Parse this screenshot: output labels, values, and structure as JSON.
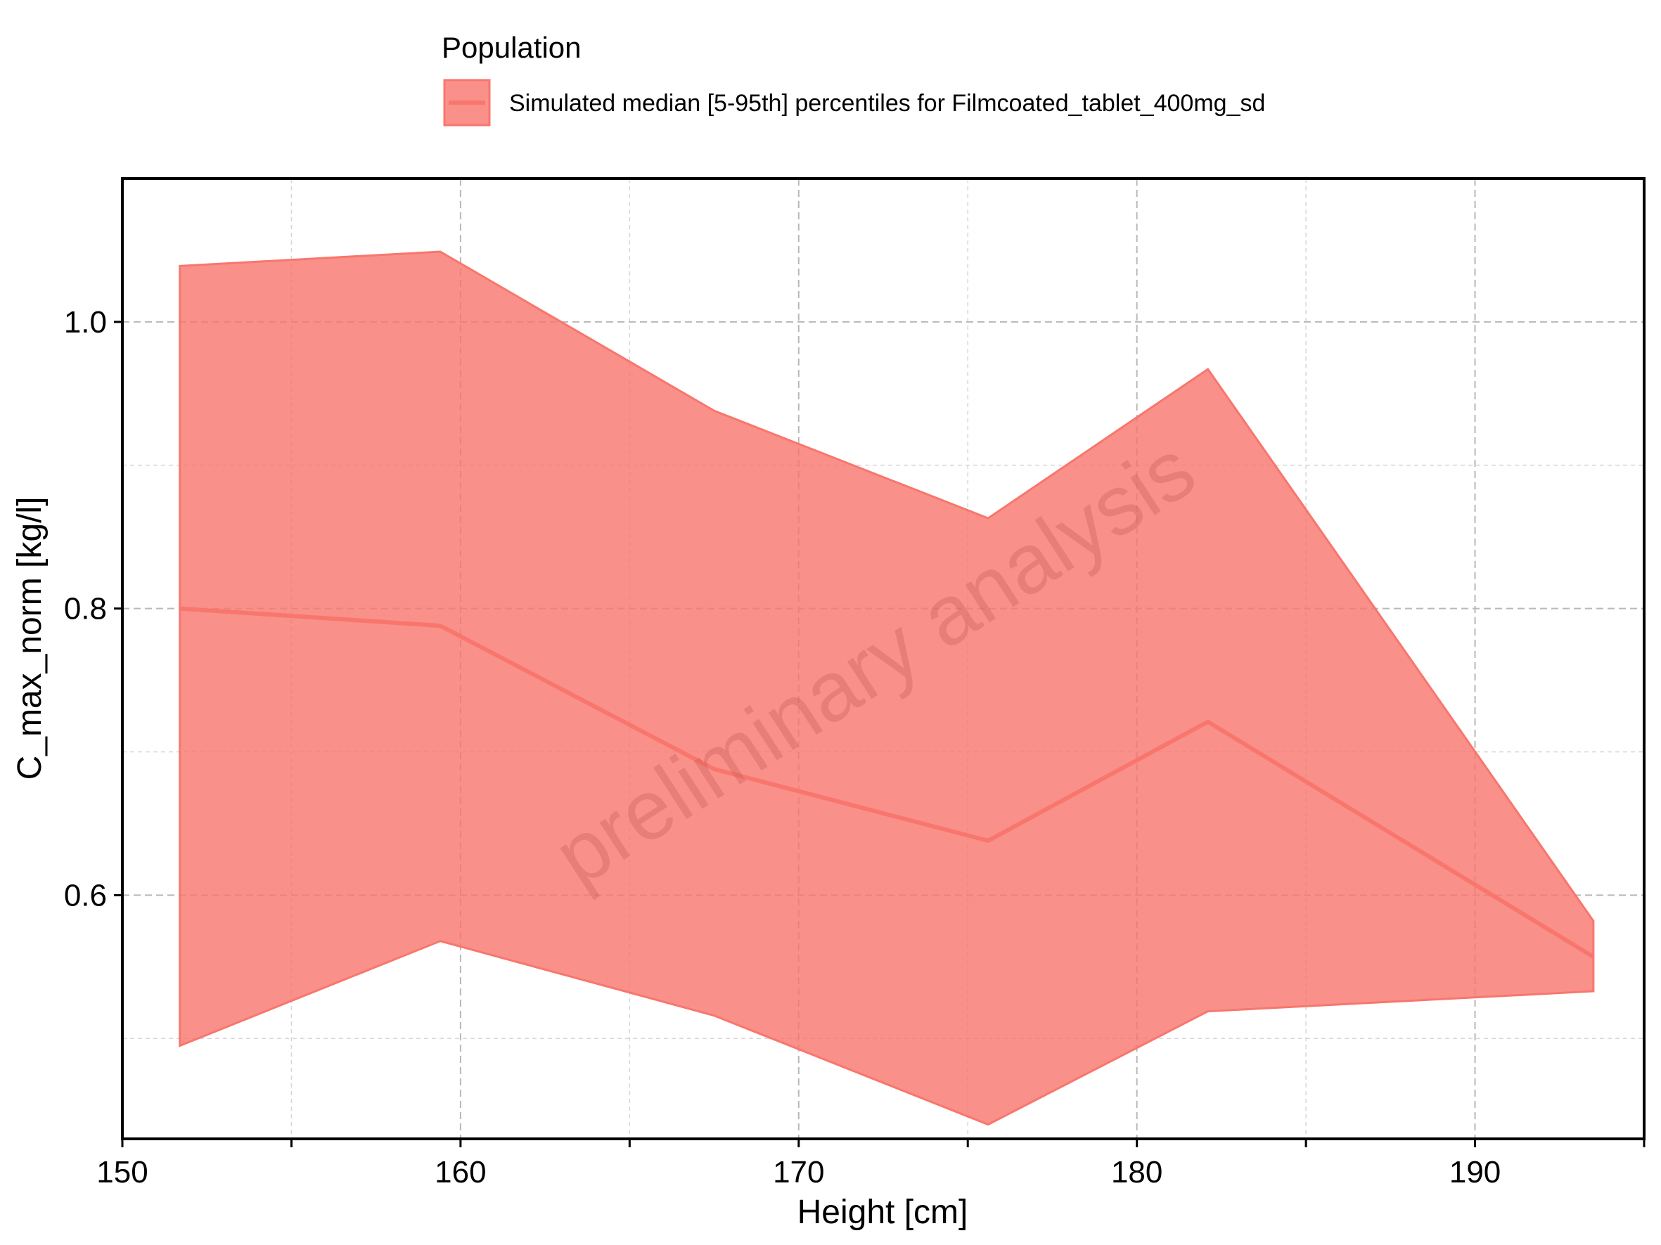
{
  "chart_data": {
    "type": "area",
    "title": "",
    "xlabel": "Height [cm]",
    "ylabel": "C_max_norm [kg/l]",
    "xlim": [
      150,
      195
    ],
    "ylim": [
      0.43,
      1.1
    ],
    "x_ticks": [
      150,
      160,
      170,
      180,
      190
    ],
    "x_tick_labels": [
      "150",
      "160",
      "170",
      "180",
      "190"
    ],
    "y_ticks": [
      0.6,
      0.8,
      1.0
    ],
    "y_tick_labels": [
      "0.6",
      "0.8",
      "1.0"
    ],
    "grid": true,
    "legend_position": "top",
    "legend_title": "Population",
    "series": [
      {
        "name": "Simulated median [5-95th] percentiles for Filmcoated_tablet_400mg_sd",
        "color": "#F8766D",
        "x": [
          151.7,
          159.4,
          167.5,
          175.6,
          182.1,
          193.5
        ],
        "median": [
          0.8,
          0.788,
          0.688,
          0.638,
          0.721,
          0.557
        ],
        "p5": [
          0.495,
          0.568,
          0.516,
          0.44,
          0.519,
          0.533
        ],
        "p95": [
          1.039,
          1.049,
          0.938,
          0.863,
          0.967,
          0.582
        ]
      }
    ],
    "watermark": "preliminary analysis"
  }
}
